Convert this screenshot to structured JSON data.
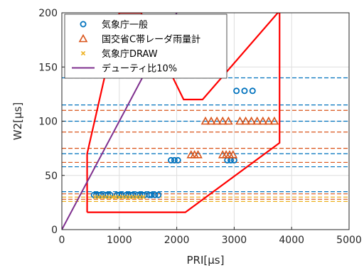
{
  "chart_data": {
    "type": "scatter",
    "xlabel": "PRI[μs]",
    "ylabel": "W2[μs]",
    "xlim": [
      0,
      5000
    ],
    "ylim": [
      0,
      200
    ],
    "xticks": [
      "0",
      "1000",
      "2000",
      "3000",
      "4000",
      "5000"
    ],
    "yticks": [
      "0",
      "50",
      "100",
      "150",
      "200"
    ],
    "grid": true,
    "legend_position": "top-left",
    "series": [
      {
        "name": "気象庁一般",
        "marker": "circle",
        "color": "#0072bd",
        "points": [
          [
            560,
            32
          ],
          [
            600,
            32
          ],
          [
            640,
            32
          ],
          [
            680,
            32
          ],
          [
            760,
            32
          ],
          [
            800,
            32
          ],
          [
            840,
            32
          ],
          [
            960,
            32
          ],
          [
            1000,
            32
          ],
          [
            1040,
            32
          ],
          [
            1120,
            32
          ],
          [
            1160,
            32
          ],
          [
            1200,
            32
          ],
          [
            1240,
            32
          ],
          [
            1320,
            32
          ],
          [
            1360,
            32
          ],
          [
            1400,
            32
          ],
          [
            1440,
            32
          ],
          [
            1520,
            32
          ],
          [
            1560,
            32
          ],
          [
            1620,
            32
          ],
          [
            1680,
            32
          ],
          [
            1900,
            64
          ],
          [
            1960,
            64
          ],
          [
            2020,
            64
          ],
          [
            2880,
            64
          ],
          [
            2940,
            64
          ],
          [
            3000,
            64
          ],
          [
            3040,
            128
          ],
          [
            3180,
            128
          ],
          [
            3320,
            128
          ]
        ]
      },
      {
        "name": "国交省C帯レーダ雨量計",
        "marker": "triangle",
        "color": "#d95319",
        "points": [
          [
            2250,
            69
          ],
          [
            2310,
            69
          ],
          [
            2370,
            69
          ],
          [
            2800,
            69
          ],
          [
            2860,
            69
          ],
          [
            2920,
            69
          ],
          [
            2980,
            69
          ],
          [
            2500,
            100
          ],
          [
            2600,
            100
          ],
          [
            2700,
            100
          ],
          [
            2800,
            100
          ],
          [
            2900,
            100
          ],
          [
            3100,
            100
          ],
          [
            3200,
            100
          ],
          [
            3300,
            100
          ],
          [
            3400,
            100
          ],
          [
            3500,
            100
          ],
          [
            3600,
            100
          ],
          [
            3700,
            100
          ]
        ]
      },
      {
        "name": "気象庁DRAW",
        "marker": "x",
        "color": "#edb120",
        "points": [
          [
            580,
            30
          ],
          [
            640,
            30
          ],
          [
            700,
            30
          ],
          [
            760,
            30
          ],
          [
            820,
            30
          ],
          [
            880,
            30
          ],
          [
            940,
            30
          ],
          [
            1000,
            30
          ],
          [
            1060,
            30
          ],
          [
            1120,
            30
          ],
          [
            1180,
            30
          ],
          [
            1240,
            30
          ],
          [
            1300,
            30
          ],
          [
            1360,
            30
          ],
          [
            1420,
            30
          ]
        ]
      },
      {
        "name": "デューティ比10%",
        "marker": "line",
        "color": "#7e2f8e",
        "points": [
          [
            0,
            0
          ],
          [
            1400,
            140
          ],
          [
            2000,
            200
          ]
        ]
      }
    ],
    "region": {
      "color": "#ff0000",
      "points": [
        [
          440,
          16
        ],
        [
          2150,
          16
        ],
        [
          3790,
          80
        ],
        [
          3790,
          200
        ],
        [
          3760,
          200
        ],
        [
          2450,
          120
        ],
        [
          2120,
          120
        ],
        [
          1380,
          200
        ],
        [
          1000,
          200
        ],
        [
          440,
          70
        ],
        [
          440,
          16
        ]
      ]
    },
    "reference_lines": [
      {
        "y": 140,
        "color": "#0072bd"
      },
      {
        "y": 115,
        "color": "#0072bd"
      },
      {
        "y": 110,
        "color": "#d95319"
      },
      {
        "y": 100,
        "color": "#0072bd"
      },
      {
        "y": 90,
        "color": "#d95319"
      },
      {
        "y": 75,
        "color": "#d95319"
      },
      {
        "y": 70,
        "color": "#0072bd"
      },
      {
        "y": 62,
        "color": "#d95319"
      },
      {
        "y": 58,
        "color": "#0072bd"
      },
      {
        "y": 35,
        "color": "#0072bd"
      },
      {
        "y": 33,
        "color": "#d95319"
      },
      {
        "y": 30,
        "color": "#edb120"
      },
      {
        "y": 28,
        "color": "#d95319"
      },
      {
        "y": 26,
        "color": "#edb120"
      }
    ]
  }
}
